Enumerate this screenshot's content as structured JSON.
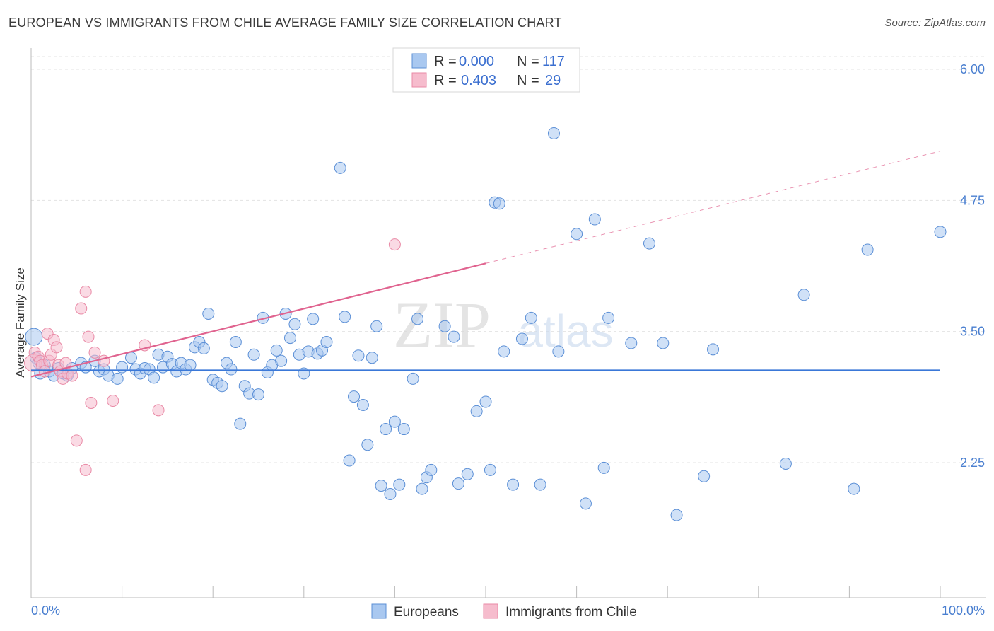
{
  "header": {
    "title": "EUROPEAN VS IMMIGRANTS FROM CHILE AVERAGE FAMILY SIZE CORRELATION CHART",
    "source": "Source: ZipAtlas.com"
  },
  "watermark": {
    "zip": "ZIP",
    "atlas": "atlas"
  },
  "legend": {
    "row1": {
      "r_label": "R =",
      "r_value": "0.000",
      "n_label": "N =",
      "n_value": "117"
    },
    "row2": {
      "r_label": "R =",
      "r_value": "0.403",
      "n_label": "N =",
      "n_value": "29"
    }
  },
  "bottom_legend": {
    "europeans": "Europeans",
    "chile": "Immigrants from Chile"
  },
  "colors": {
    "blue_fill": "#a9c8f0",
    "blue_stroke": "#5b8fd6",
    "blue_line": "#3a78d8",
    "pink_fill": "#f6bccd",
    "pink_stroke": "#e98aa6",
    "pink_line": "#e0638f"
  },
  "chart_data": {
    "type": "scatter",
    "xlabel": "",
    "ylabel": "Average Family Size",
    "xlim": [
      0,
      100
    ],
    "ylim": [
      1.0,
      6.2
    ],
    "x_tick_labels": [
      "0.0%",
      "100.0%"
    ],
    "y_ticks": [
      2.25,
      3.5,
      4.75,
      6.0
    ],
    "y_tick_labels": [
      "2.25",
      "3.50",
      "4.75",
      "6.00"
    ],
    "grid": true,
    "series": [
      {
        "name": "Europeans",
        "trend": {
          "x0": 0,
          "y0": 3.13,
          "x1": 100,
          "y1": 3.13
        },
        "points": [
          [
            0.3,
            3.45
          ],
          [
            0.5,
            3.25
          ],
          [
            0.8,
            3.2
          ],
          [
            1.0,
            3.1
          ],
          [
            1.5,
            3.18
          ],
          [
            2.0,
            3.12
          ],
          [
            2.5,
            3.08
          ],
          [
            3.0,
            3.15
          ],
          [
            3.5,
            3.1
          ],
          [
            4.0,
            3.08
          ],
          [
            4.5,
            3.15
          ],
          [
            5.5,
            3.2
          ],
          [
            6.0,
            3.16
          ],
          [
            7.0,
            3.22
          ],
          [
            7.5,
            3.12
          ],
          [
            8.0,
            3.14
          ],
          [
            8.5,
            3.08
          ],
          [
            9.5,
            3.05
          ],
          [
            10.0,
            3.16
          ],
          [
            11.0,
            3.25
          ],
          [
            11.5,
            3.14
          ],
          [
            12.0,
            3.1
          ],
          [
            12.5,
            3.15
          ],
          [
            13.0,
            3.14
          ],
          [
            13.5,
            3.06
          ],
          [
            14.0,
            3.28
          ],
          [
            14.5,
            3.16
          ],
          [
            15.0,
            3.26
          ],
          [
            15.5,
            3.19
          ],
          [
            16.0,
            3.12
          ],
          [
            16.5,
            3.2
          ],
          [
            17.0,
            3.14
          ],
          [
            17.5,
            3.18
          ],
          [
            18.0,
            3.35
          ],
          [
            18.5,
            3.4
          ],
          [
            19.0,
            3.34
          ],
          [
            19.5,
            3.67
          ],
          [
            20.0,
            3.04
          ],
          [
            20.5,
            3.01
          ],
          [
            21.0,
            2.98
          ],
          [
            21.5,
            3.2
          ],
          [
            22.0,
            3.14
          ],
          [
            22.5,
            3.4
          ],
          [
            23.0,
            2.62
          ],
          [
            23.5,
            2.98
          ],
          [
            24.0,
            2.91
          ],
          [
            24.5,
            3.28
          ],
          [
            25.0,
            2.9
          ],
          [
            25.5,
            3.63
          ],
          [
            26.0,
            3.11
          ],
          [
            26.5,
            3.18
          ],
          [
            27.0,
            3.32
          ],
          [
            27.5,
            3.22
          ],
          [
            28.0,
            3.67
          ],
          [
            28.5,
            3.44
          ],
          [
            29.0,
            3.57
          ],
          [
            29.5,
            3.28
          ],
          [
            30.0,
            3.1
          ],
          [
            30.5,
            3.31
          ],
          [
            31.0,
            3.62
          ],
          [
            31.5,
            3.29
          ],
          [
            32.0,
            3.32
          ],
          [
            32.5,
            3.4
          ],
          [
            34.0,
            5.06
          ],
          [
            34.5,
            3.64
          ],
          [
            35.0,
            2.27
          ],
          [
            35.5,
            2.88
          ],
          [
            36.0,
            3.27
          ],
          [
            36.5,
            2.8
          ],
          [
            37.0,
            2.42
          ],
          [
            37.5,
            3.25
          ],
          [
            38.0,
            3.55
          ],
          [
            38.5,
            2.03
          ],
          [
            39.0,
            2.57
          ],
          [
            39.5,
            1.95
          ],
          [
            40.0,
            2.64
          ],
          [
            40.5,
            2.04
          ],
          [
            41.0,
            2.57
          ],
          [
            42.0,
            3.05
          ],
          [
            42.5,
            3.62
          ],
          [
            43.0,
            2.0
          ],
          [
            43.5,
            2.11
          ],
          [
            44.0,
            2.18
          ],
          [
            45.5,
            3.55
          ],
          [
            46.5,
            3.45
          ],
          [
            47.0,
            2.05
          ],
          [
            48.0,
            2.14
          ],
          [
            49.0,
            2.74
          ],
          [
            50.0,
            2.83
          ],
          [
            50.5,
            2.18
          ],
          [
            51.0,
            4.73
          ],
          [
            51.5,
            4.72
          ],
          [
            52.0,
            3.31
          ],
          [
            53.0,
            2.04
          ],
          [
            54.0,
            3.43
          ],
          [
            55.0,
            3.63
          ],
          [
            56.0,
            2.04
          ],
          [
            57.5,
            5.39
          ],
          [
            58.0,
            3.31
          ],
          [
            60.0,
            4.43
          ],
          [
            61.0,
            1.86
          ],
          [
            62.0,
            4.57
          ],
          [
            63.0,
            2.2
          ],
          [
            63.5,
            3.63
          ],
          [
            66.0,
            3.39
          ],
          [
            68.0,
            4.34
          ],
          [
            69.5,
            3.39
          ],
          [
            71.0,
            1.75
          ],
          [
            74.0,
            2.12
          ],
          [
            75.0,
            3.33
          ],
          [
            83.0,
            2.24
          ],
          [
            85.0,
            3.85
          ],
          [
            90.5,
            2.0
          ],
          [
            92.0,
            4.28
          ],
          [
            100.0,
            4.45
          ]
        ]
      },
      {
        "name": "Immigrants from Chile",
        "trend": {
          "x0": 0,
          "y0": 3.07,
          "x1": 50,
          "y1": 4.15,
          "dash_x1": 100,
          "dash_y1": 5.22
        },
        "points": [
          [
            0.2,
            3.2
          ],
          [
            0.4,
            3.3
          ],
          [
            0.8,
            3.26
          ],
          [
            1.0,
            3.22
          ],
          [
            1.2,
            3.18
          ],
          [
            1.5,
            3.12
          ],
          [
            1.8,
            3.48
          ],
          [
            2.0,
            3.22
          ],
          [
            2.2,
            3.28
          ],
          [
            2.5,
            3.42
          ],
          [
            2.8,
            3.35
          ],
          [
            3.0,
            3.18
          ],
          [
            3.2,
            3.12
          ],
          [
            3.5,
            3.05
          ],
          [
            3.8,
            3.2
          ],
          [
            4.0,
            3.1
          ],
          [
            4.5,
            3.08
          ],
          [
            5.0,
            2.46
          ],
          [
            5.5,
            3.72
          ],
          [
            6.0,
            2.18
          ],
          [
            6.0,
            3.88
          ],
          [
            6.3,
            3.45
          ],
          [
            6.6,
            2.82
          ],
          [
            7.0,
            3.3
          ],
          [
            8.0,
            3.22
          ],
          [
            9.0,
            2.84
          ],
          [
            12.5,
            3.37
          ],
          [
            14.0,
            2.75
          ],
          [
            40.0,
            4.33
          ]
        ]
      }
    ]
  }
}
